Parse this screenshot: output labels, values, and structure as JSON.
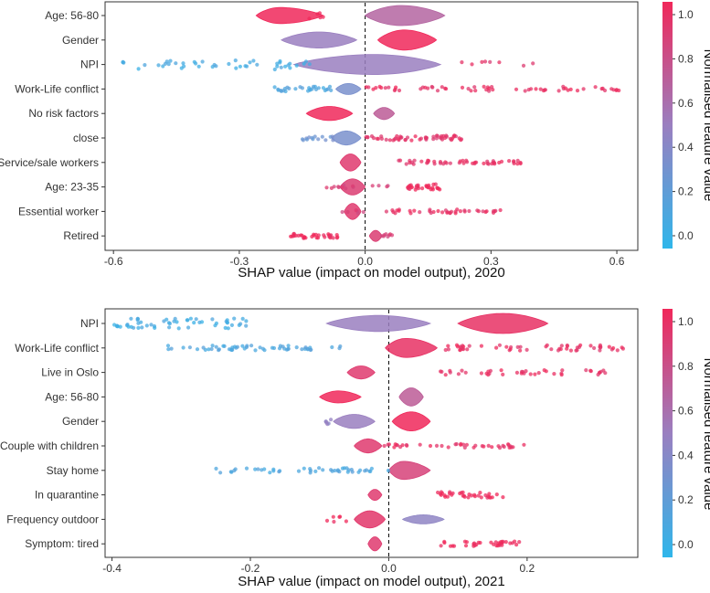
{
  "colors": {
    "low": "#2fb6ea",
    "mid": "#9a7fc0",
    "high": "#f0285a",
    "frame": "#333333",
    "zero_line": "#000000"
  },
  "legend": {
    "title": "Normalised feature value",
    "ticks": [
      "0.0",
      "0.2",
      "0.4",
      "0.6",
      "0.8",
      "1.0"
    ]
  },
  "chart_data": [
    {
      "type": "scatter",
      "subtype": "shap-beeswarm",
      "xlabel": "SHAP value (impact on model output), 2020",
      "xlim": [
        -0.62,
        0.65
      ],
      "x_ticks": [
        -0.6,
        -0.3,
        0.0,
        0.3,
        0.6
      ],
      "x_tick_labels": [
        "-0.6",
        "-0.3",
        "0.0",
        "0.3",
        "0.6"
      ],
      "features": [
        {
          "name": "Age: 56-80",
          "clusters": [
            {
              "type": "violin",
              "from": -0.26,
              "to": -0.1,
              "width": 0.8,
              "color": 1.0,
              "peak": 0.35
            },
            {
              "type": "violin",
              "from": 0.0,
              "to": 0.19,
              "width": 1.0,
              "color": 0.65,
              "peak": 0.45
            },
            {
              "type": "dots",
              "from": -0.14,
              "to": -0.1,
              "n": 5,
              "spread": 0.2,
              "color": 1.0
            }
          ]
        },
        {
          "name": "Gender",
          "clusters": [
            {
              "type": "violin",
              "from": -0.2,
              "to": -0.02,
              "width": 0.8,
              "color": 0.5,
              "peak": 0.5
            },
            {
              "type": "violin",
              "from": 0.03,
              "to": 0.17,
              "width": 1.0,
              "color": 1.0,
              "peak": 0.45
            }
          ]
        },
        {
          "name": "NPI",
          "clusters": [
            {
              "type": "violin",
              "from": -0.17,
              "to": 0.18,
              "width": 1.0,
              "color": 0.5,
              "peak": 0.55
            },
            {
              "type": "dots",
              "from": -0.58,
              "to": -0.12,
              "n": 45,
              "spread": 0.25,
              "color": 0.1
            },
            {
              "type": "dots",
              "from": 0.2,
              "to": 0.45,
              "n": 8,
              "spread": 0.15,
              "color": 0.9
            }
          ]
        },
        {
          "name": "Work-Life conflict",
          "clusters": [
            {
              "type": "violin",
              "from": -0.07,
              "to": -0.01,
              "width": 0.55,
              "color": 0.35,
              "peak": 0.5
            },
            {
              "type": "dots",
              "from": -0.25,
              "to": -0.08,
              "n": 28,
              "spread": 0.12,
              "color": 0.15
            },
            {
              "type": "dots",
              "from": 0.0,
              "to": 0.61,
              "n": 60,
              "spread": 0.12,
              "color": 0.95
            }
          ]
        },
        {
          "name": "No risk factors",
          "clusters": [
            {
              "type": "violin",
              "from": -0.14,
              "to": -0.03,
              "width": 0.7,
              "color": 1.0,
              "peak": 0.5
            },
            {
              "type": "violin",
              "from": 0.02,
              "to": 0.07,
              "width": 0.6,
              "color": 0.7,
              "peak": 0.5
            }
          ]
        },
        {
          "name": "close",
          "clusters": [
            {
              "type": "violin",
              "from": -0.08,
              "to": -0.01,
              "width": 0.7,
              "color": 0.35,
              "peak": 0.5
            },
            {
              "type": "dots",
              "from": -0.15,
              "to": -0.07,
              "n": 14,
              "spread": 0.12,
              "color": 0.3
            },
            {
              "type": "dots",
              "from": 0.0,
              "to": 0.23,
              "n": 55,
              "spread": 0.12,
              "color": 0.92
            }
          ]
        },
        {
          "name": "Service/sale workers",
          "clusters": [
            {
              "type": "violin",
              "from": -0.06,
              "to": -0.01,
              "width": 0.85,
              "color": 0.9,
              "peak": 0.5
            },
            {
              "type": "dots",
              "from": 0.08,
              "to": 0.39,
              "n": 50,
              "spread": 0.1,
              "color": 0.95
            }
          ]
        },
        {
          "name": "Age: 23-35",
          "clusters": [
            {
              "type": "violin",
              "from": -0.06,
              "to": 0.0,
              "width": 0.8,
              "color": 0.88,
              "peak": 0.5
            },
            {
              "type": "dots",
              "from": -0.1,
              "to": 0.08,
              "n": 14,
              "spread": 0.1,
              "color": 0.85
            },
            {
              "type": "dots",
              "from": 0.1,
              "to": 0.18,
              "n": 30,
              "spread": 0.14,
              "color": 1.0
            }
          ]
        },
        {
          "name": "Essential worker",
          "clusters": [
            {
              "type": "violin",
              "from": -0.05,
              "to": -0.01,
              "width": 0.8,
              "color": 0.9,
              "peak": 0.5
            },
            {
              "type": "dots",
              "from": -0.09,
              "to": 0.0,
              "n": 6,
              "spread": 0.1,
              "color": 0.85
            },
            {
              "type": "dots",
              "from": 0.05,
              "to": 0.33,
              "n": 40,
              "spread": 0.1,
              "color": 0.95
            }
          ]
        },
        {
          "name": "Retired",
          "clusters": [
            {
              "type": "violin",
              "from": 0.01,
              "to": 0.04,
              "width": 0.55,
              "color": 0.88,
              "peak": 0.5
            },
            {
              "type": "dots",
              "from": -0.18,
              "to": -0.06,
              "n": 35,
              "spread": 0.12,
              "color": 1.0
            },
            {
              "type": "dots",
              "from": 0.04,
              "to": 0.07,
              "n": 8,
              "spread": 0.1,
              "color": 0.85
            }
          ]
        }
      ]
    },
    {
      "type": "scatter",
      "subtype": "shap-beeswarm",
      "xlabel": "SHAP value (impact on model output), 2021",
      "xlim": [
        -0.41,
        0.36
      ],
      "x_ticks": [
        -0.4,
        -0.2,
        0.0,
        0.2
      ],
      "x_tick_labels": [
        "-0.4",
        "-0.2",
        "0.0",
        "0.2"
      ],
      "features": [
        {
          "name": "NPI",
          "clusters": [
            {
              "type": "violin",
              "from": -0.09,
              "to": 0.06,
              "width": 0.8,
              "color": 0.5,
              "peak": 0.5
            },
            {
              "type": "violin",
              "from": 0.1,
              "to": 0.23,
              "width": 1.0,
              "color": 0.95,
              "peak": 0.5
            },
            {
              "type": "dots",
              "from": -0.4,
              "to": -0.2,
              "n": 55,
              "spread": 0.25,
              "color": 0.1
            }
          ]
        },
        {
          "name": "Work-Life conflict",
          "clusters": [
            {
              "type": "violin",
              "from": -0.005,
              "to": 0.07,
              "width": 0.95,
              "color": 0.95,
              "peak": 0.4
            },
            {
              "type": "dots",
              "from": -0.32,
              "to": -0.07,
              "n": 55,
              "spread": 0.12,
              "color": 0.15
            },
            {
              "type": "dots",
              "from": 0.07,
              "to": 0.34,
              "n": 55,
              "spread": 0.14,
              "color": 0.95
            }
          ]
        },
        {
          "name": "Live in Oslo",
          "clusters": [
            {
              "type": "violin",
              "from": -0.06,
              "to": -0.02,
              "width": 0.65,
              "color": 0.9,
              "peak": 0.5
            },
            {
              "type": "dots",
              "from": 0.07,
              "to": 0.32,
              "n": 40,
              "spread": 0.12,
              "color": 0.95
            }
          ]
        },
        {
          "name": "Age: 56-80",
          "clusters": [
            {
              "type": "violin",
              "from": -0.1,
              "to": -0.04,
              "width": 0.6,
              "color": 1.0,
              "peak": 0.45
            },
            {
              "type": "violin",
              "from": 0.015,
              "to": 0.05,
              "width": 0.9,
              "color": 0.7,
              "peak": 0.5
            }
          ]
        },
        {
          "name": "Gender",
          "clusters": [
            {
              "type": "violin",
              "from": -0.08,
              "to": -0.02,
              "width": 0.7,
              "color": 0.5,
              "peak": 0.5
            },
            {
              "type": "violin",
              "from": 0.005,
              "to": 0.06,
              "width": 0.95,
              "color": 1.0,
              "peak": 0.5
            },
            {
              "type": "dots",
              "from": -0.1,
              "to": -0.08,
              "n": 6,
              "spread": 0.15,
              "color": 0.45
            }
          ]
        },
        {
          "name": "Couple with children",
          "clusters": [
            {
              "type": "violin",
              "from": -0.05,
              "to": -0.01,
              "width": 0.7,
              "color": 0.9,
              "peak": 0.5
            },
            {
              "type": "dots",
              "from": -0.01,
              "to": 0.2,
              "n": 40,
              "spread": 0.1,
              "color": 0.95
            }
          ]
        },
        {
          "name": "Stay home",
          "clusters": [
            {
              "type": "violin",
              "from": 0.0,
              "to": 0.06,
              "width": 0.9,
              "color": 0.85,
              "peak": 0.35
            },
            {
              "type": "dots",
              "from": -0.25,
              "to": 0.0,
              "n": 45,
              "spread": 0.12,
              "color": 0.15
            }
          ]
        },
        {
          "name": "In quarantine",
          "clusters": [
            {
              "type": "violin",
              "from": -0.03,
              "to": -0.01,
              "width": 0.55,
              "color": 0.9,
              "peak": 0.5
            },
            {
              "type": "dots",
              "from": 0.07,
              "to": 0.17,
              "n": 35,
              "spread": 0.14,
              "color": 1.0
            }
          ]
        },
        {
          "name": "Frequency outdoor",
          "clusters": [
            {
              "type": "violin",
              "from": -0.05,
              "to": -0.005,
              "width": 0.85,
              "color": 0.92,
              "peak": 0.5
            },
            {
              "type": "violin",
              "from": 0.02,
              "to": 0.08,
              "width": 0.45,
              "color": 0.45,
              "peak": 0.5
            },
            {
              "type": "dots",
              "from": -0.09,
              "to": -0.06,
              "n": 6,
              "spread": 0.15,
              "color": 1.0
            }
          ]
        },
        {
          "name": "Symptom: tired",
          "clusters": [
            {
              "type": "violin",
              "from": -0.03,
              "to": -0.01,
              "width": 0.7,
              "color": 0.9,
              "peak": 0.5
            },
            {
              "type": "dots",
              "from": 0.07,
              "to": 0.19,
              "n": 35,
              "spread": 0.12,
              "color": 1.0
            }
          ]
        }
      ]
    }
  ]
}
